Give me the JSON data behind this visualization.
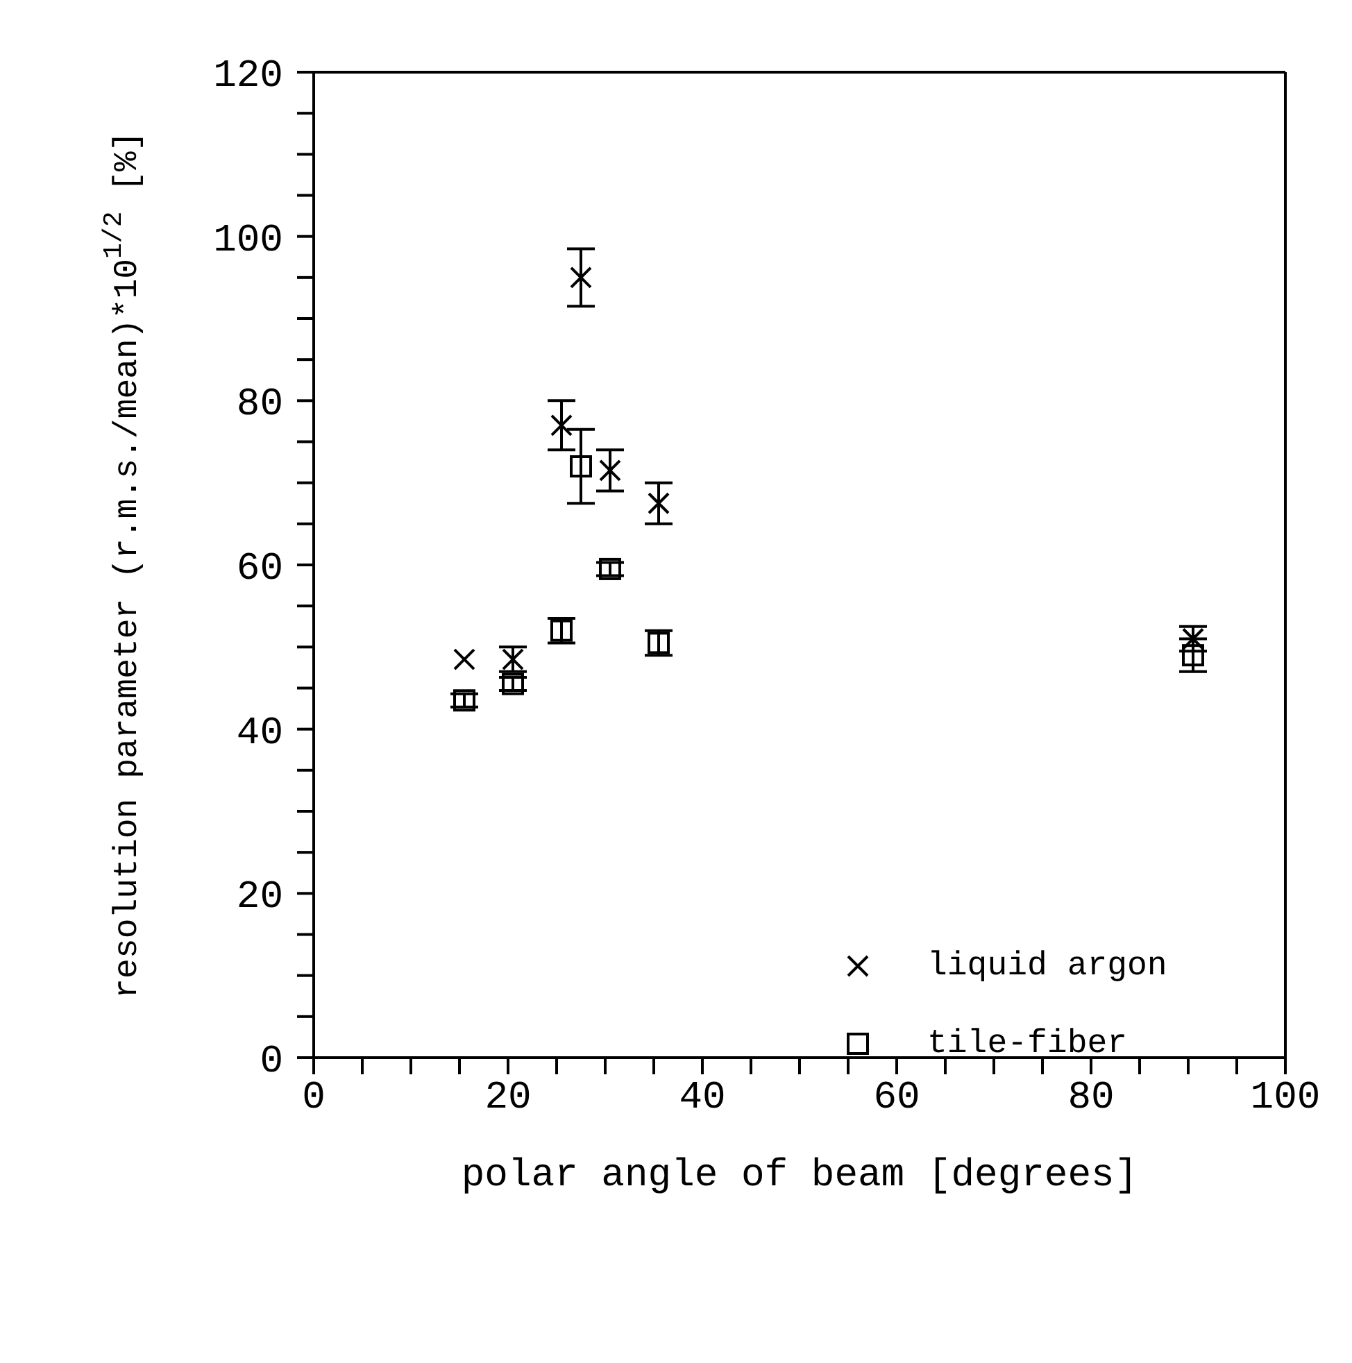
{
  "chart_data": {
    "type": "scatter",
    "xlabel": "polar angle of beam [degrees]",
    "ylabel": "resolution parameter (r.m.s./mean)*10$^{1/2}$ [%]",
    "xlim": [
      0,
      100
    ],
    "ylim": [
      0,
      120
    ],
    "xticks": [
      0,
      {
        "value": 5,
        "label": null
      },
      {
        "value": 10,
        "label": null
      },
      {
        "value": 15,
        "label": null
      },
      20,
      {
        "value": 25,
        "label": null
      },
      {
        "value": 30,
        "label": null
      },
      {
        "value": 35,
        "label": null
      },
      40,
      {
        "value": 45,
        "label": null
      },
      {
        "value": 50,
        "label": null
      },
      {
        "value": 55,
        "label": null
      },
      60,
      {
        "value": 65,
        "label": null
      },
      {
        "value": 70,
        "label": null
      },
      {
        "value": 75,
        "label": null
      },
      80,
      {
        "value": 85,
        "label": null
      },
      {
        "value": 90,
        "label": null
      },
      {
        "value": 95,
        "label": null
      },
      100
    ],
    "yticks": [
      0,
      {
        "value": 5,
        "label": null
      },
      {
        "value": 10,
        "label": null
      },
      {
        "value": 15,
        "label": null
      },
      20,
      {
        "value": 25,
        "label": null
      },
      {
        "value": 30,
        "label": null
      },
      {
        "value": 35,
        "label": null
      },
      40,
      {
        "value": 45,
        "label": null
      },
      {
        "value": 50,
        "label": null
      },
      {
        "value": 55,
        "label": null
      },
      60,
      {
        "value": 65,
        "label": null
      },
      {
        "value": 70,
        "label": null
      },
      {
        "value": 75,
        "label": null
      },
      80,
      {
        "value": 85,
        "label": null
      },
      {
        "value": 90,
        "label": null
      },
      {
        "value": 95,
        "label": null
      },
      100,
      {
        "value": 105,
        "label": null
      },
      {
        "value": 110,
        "label": null
      },
      {
        "value": 115,
        "label": null
      },
      120
    ],
    "grid": false,
    "legend": "bottom right",
    "series": [
      {
        "name": "liquid argon",
        "color": "#000000",
        "marker": "cross",
        "x": [
          15.5,
          20.5,
          25.5,
          27.5,
          30.5,
          35.5,
          90.5
        ],
        "values": [
          48.5,
          48.5,
          77,
          95,
          71.5,
          67.5,
          51
        ],
        "errors": [
          null,
          1.5,
          3,
          3.5,
          2.5,
          2.5,
          1.5
        ]
      },
      {
        "name": "tile-fiber",
        "color": "#000000",
        "marker": "square",
        "x": [
          15.5,
          20.5,
          25.5,
          27.5,
          30.5,
          35.5,
          90.5
        ],
        "values": [
          43.5,
          45.5,
          52,
          72,
          59.5,
          50.5,
          49
        ],
        "errors": [
          0.8,
          0.8,
          1.5,
          4.5,
          0.8,
          1.5,
          2
        ]
      }
    ]
  }
}
